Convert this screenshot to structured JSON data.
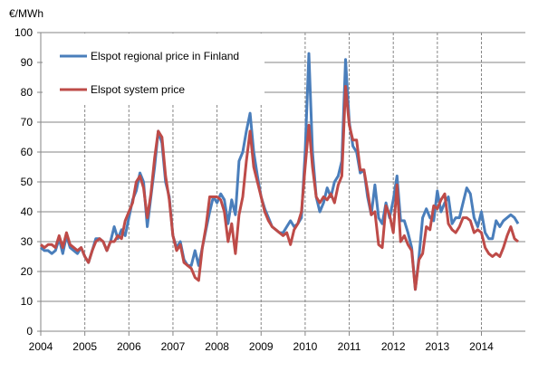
{
  "chart_data": {
    "type": "line",
    "title": "",
    "ylabel": "€/MWh",
    "xlabel": "",
    "ylim": [
      0,
      100
    ],
    "yticks": [
      0,
      10,
      20,
      30,
      40,
      50,
      60,
      70,
      80,
      90,
      100
    ],
    "xticks": [
      "2004",
      "2005",
      "2006",
      "2007",
      "2008",
      "2009",
      "2010",
      "2011",
      "2012",
      "2013",
      "2014"
    ],
    "x_start": "2004-01",
    "x_frequency": "monthly",
    "grid": "horizontal solid, vertical dashed at years",
    "legend": "top-left",
    "series": [
      {
        "name": "Elspot regional price in Finland",
        "color": "#4a7ebb",
        "values": [
          28,
          27,
          27,
          26,
          27,
          31,
          26,
          32,
          28,
          27,
          26,
          28,
          25,
          23,
          27,
          31,
          31,
          30,
          27,
          30,
          35,
          31,
          34,
          32,
          38,
          44,
          47,
          53,
          50,
          35,
          45,
          55,
          67,
          63,
          50,
          45,
          32,
          28,
          30,
          24,
          22,
          22,
          27,
          22,
          28,
          34,
          40,
          45,
          43,
          46,
          44,
          36,
          44,
          39,
          57,
          60,
          67,
          73,
          60,
          52,
          45,
          41,
          38,
          35,
          34,
          33,
          33,
          35,
          37,
          35,
          36,
          38,
          60,
          93,
          60,
          45,
          40,
          43,
          48,
          45,
          50,
          52,
          57,
          91,
          70,
          62,
          60,
          53,
          54,
          45,
          39,
          49,
          38,
          36,
          43,
          38,
          44,
          52,
          37,
          37,
          33,
          28,
          14,
          25,
          38,
          41,
          38,
          37,
          47,
          40,
          43,
          45,
          36,
          38,
          38,
          43,
          48,
          46,
          38,
          35,
          40,
          33,
          31,
          31,
          37,
          35,
          37,
          38,
          39,
          38,
          36
        ]
      },
      {
        "name": "Elspot system price",
        "color": "#be4b48",
        "values": [
          29,
          28,
          29,
          29,
          28,
          32,
          28,
          33,
          29,
          28,
          27,
          28,
          25,
          23,
          27,
          30,
          31,
          30,
          27,
          30,
          30,
          32,
          31,
          37,
          40,
          43,
          50,
          52,
          48,
          38,
          46,
          58,
          67,
          65,
          52,
          44,
          32,
          27,
          29,
          23,
          22,
          21,
          18,
          17,
          28,
          35,
          45,
          45,
          45,
          44,
          40,
          30,
          36,
          26,
          39,
          45,
          57,
          67,
          55,
          50,
          45,
          40,
          37,
          35,
          34,
          33,
          32,
          33,
          29,
          34,
          36,
          40,
          55,
          69,
          55,
          45,
          43,
          45,
          44,
          46,
          43,
          49,
          52,
          82,
          69,
          64,
          64,
          54,
          54,
          47,
          39,
          40,
          29,
          28,
          42,
          39,
          33,
          49,
          30,
          32,
          29,
          27,
          14,
          24,
          26,
          35,
          34,
          42,
          41,
          44,
          46,
          36,
          34,
          33,
          35,
          38,
          38,
          37,
          33,
          34,
          33,
          28,
          26,
          25,
          26,
          25,
          28,
          32,
          35,
          31,
          30
        ]
      }
    ]
  }
}
